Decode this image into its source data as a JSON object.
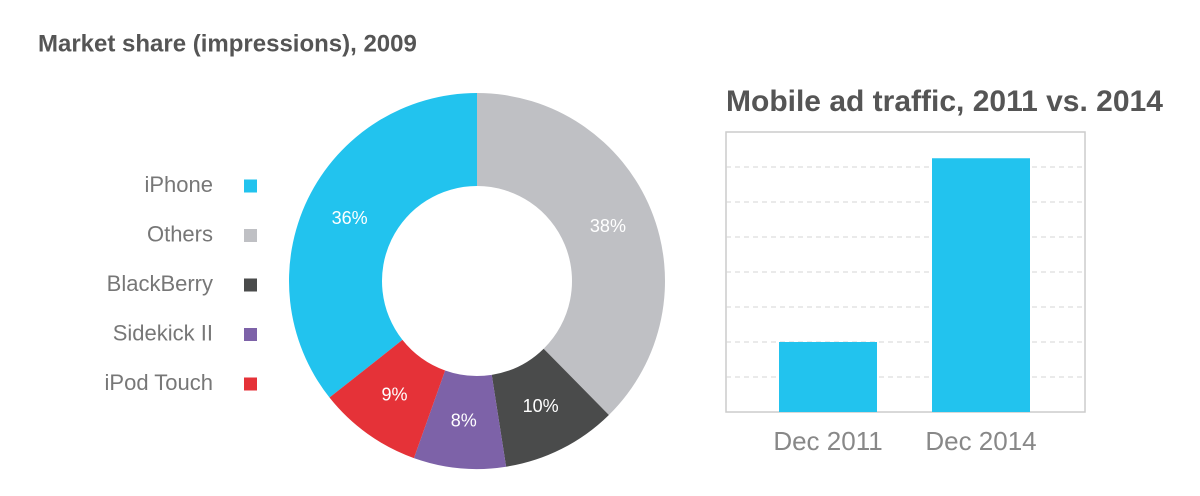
{
  "chart_data": [
    {
      "type": "donut",
      "title": "Market share (impressions), 2009",
      "categories": [
        "iPhone",
        "Others",
        "BlackBerry",
        "Sidekick II",
        "iPod Touch"
      ],
      "values": [
        36,
        38,
        10,
        8,
        9
      ],
      "value_labels": [
        "36%",
        "38%",
        "10%",
        "8%",
        "9%"
      ],
      "colors": [
        "#22c3ee",
        "#bfc0c4",
        "#4a4b4b",
        "#7d62a8",
        "#e53238"
      ],
      "legend": "left"
    },
    {
      "type": "bar",
      "title": "Mobile ad traffic, 2011 vs. 2014",
      "categories": [
        "Dec 2011",
        "Dec 2014"
      ],
      "values": [
        2,
        7.25
      ],
      "color": "#22c3ee",
      "ylim": [
        0,
        8
      ],
      "yticks": [
        1,
        2,
        3,
        4,
        5,
        6,
        7
      ],
      "grid": true,
      "ytick_labels": false
    }
  ]
}
